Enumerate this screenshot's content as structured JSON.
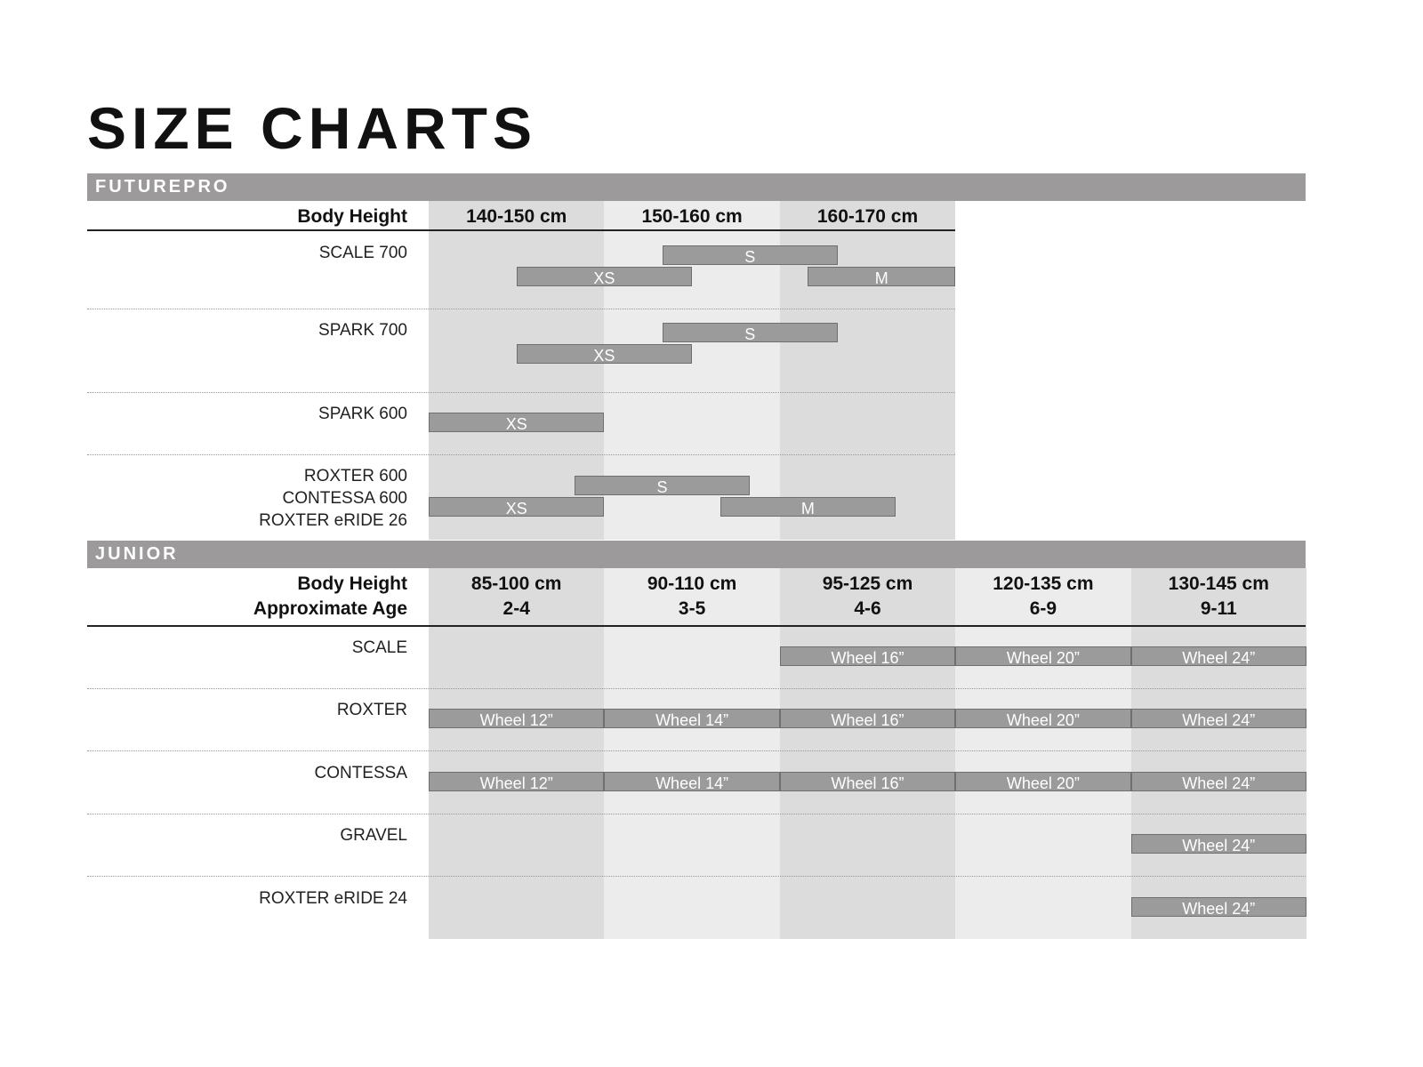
{
  "title": "SIZE CHARTS",
  "colors": {
    "band": "#9c9a9b",
    "col_dark": "#dcdcdc",
    "col_light": "#ececec",
    "bar": "#9b9b9b"
  },
  "futurepro": {
    "label": "FUTUREPRO",
    "header_label": "Body Height",
    "columns": [
      "140-150 cm",
      "150-160 cm",
      "160-170 cm"
    ],
    "column_range_cm": [
      140,
      170
    ],
    "rows": [
      {
        "names": [
          "SCALE 700"
        ],
        "bars": [
          {
            "label": "S",
            "from_cm": 153.3,
            "to_cm": 163.3,
            "lane": 0
          },
          {
            "label": "XS",
            "from_cm": 145,
            "to_cm": 155,
            "lane": 1
          },
          {
            "label": "M",
            "from_cm": 161.6,
            "to_cm": 170,
            "lane": 1
          }
        ]
      },
      {
        "names": [
          "SPARK 700"
        ],
        "bars": [
          {
            "label": "S",
            "from_cm": 153.3,
            "to_cm": 163.3,
            "lane": 0
          },
          {
            "label": "XS",
            "from_cm": 145,
            "to_cm": 155,
            "lane": 1
          }
        ]
      },
      {
        "names": [
          "SPARK 600"
        ],
        "bars": [
          {
            "label": "XS",
            "from_cm": 140,
            "to_cm": 150,
            "lane": 0
          }
        ]
      },
      {
        "names": [
          "ROXTER 600",
          "CONTESSA 600",
          "ROXTER eRIDE 26"
        ],
        "bars": [
          {
            "label": "S",
            "from_cm": 148.3,
            "to_cm": 158.3,
            "lane": 0
          },
          {
            "label": "XS",
            "from_cm": 140,
            "to_cm": 150,
            "lane": 1
          },
          {
            "label": "M",
            "from_cm": 156.6,
            "to_cm": 166.6,
            "lane": 1
          }
        ]
      }
    ]
  },
  "junior": {
    "label": "JUNIOR",
    "header_label": "Body Height",
    "header_label2": "Approximate Age",
    "columns": [
      {
        "height": "85-100 cm",
        "age": "2-4"
      },
      {
        "height": "90-110 cm",
        "age": "3-5"
      },
      {
        "height": "95-125 cm",
        "age": "4-6"
      },
      {
        "height": "120-135 cm",
        "age": "6-9"
      },
      {
        "height": "130-145 cm",
        "age": "9-11"
      }
    ],
    "rows": [
      {
        "name": "SCALE",
        "cells": [
          null,
          null,
          "Wheel 16”",
          "Wheel 20”",
          "Wheel 24”"
        ]
      },
      {
        "name": "ROXTER",
        "cells": [
          "Wheel 12”",
          "Wheel 14”",
          "Wheel 16”",
          "Wheel 20”",
          "Wheel 24”"
        ]
      },
      {
        "name": "CONTESSA",
        "cells": [
          "Wheel 12”",
          "Wheel 14”",
          "Wheel 16”",
          "Wheel 20”",
          "Wheel 24”"
        ]
      },
      {
        "name": "GRAVEL",
        "cells": [
          null,
          null,
          null,
          null,
          "Wheel 24”"
        ]
      },
      {
        "name": "ROXTER eRIDE 24",
        "cells": [
          null,
          null,
          null,
          null,
          "Wheel 24”"
        ]
      }
    ]
  }
}
